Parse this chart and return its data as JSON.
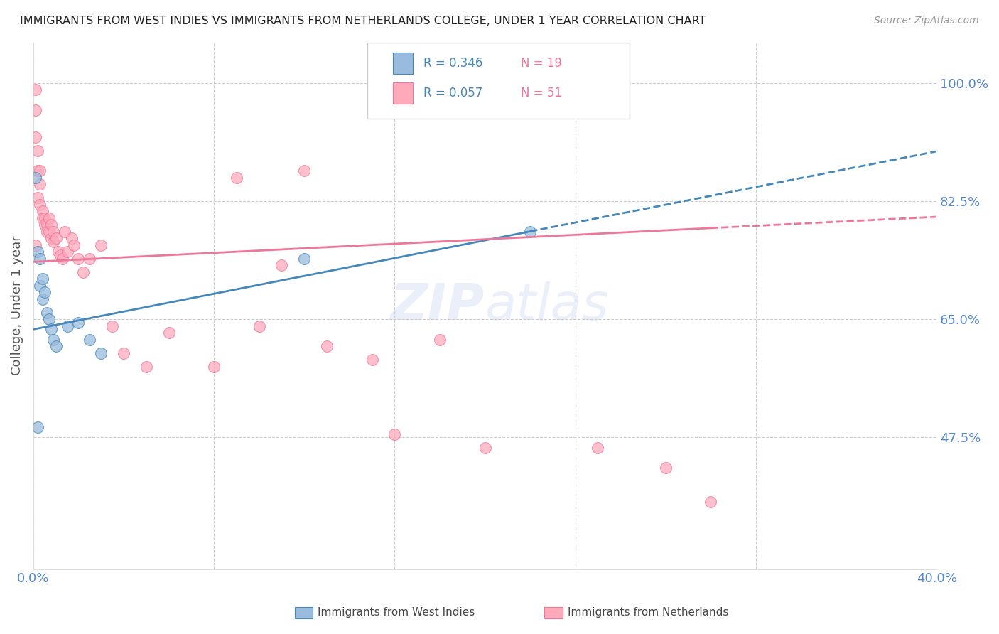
{
  "title": "IMMIGRANTS FROM WEST INDIES VS IMMIGRANTS FROM NETHERLANDS COLLEGE, UNDER 1 YEAR CORRELATION CHART",
  "source": "Source: ZipAtlas.com",
  "ylabel": "College, Under 1 year",
  "ytick_labels": [
    "47.5%",
    "65.0%",
    "82.5%",
    "100.0%"
  ],
  "ytick_values": [
    0.475,
    0.65,
    0.825,
    1.0
  ],
  "xlim": [
    0.0,
    0.4
  ],
  "ylim": [
    0.28,
    1.06
  ],
  "legend_r1": "R = 0.346",
  "legend_n1": "N = 19",
  "legend_r2": "R = 0.057",
  "legend_n2": "N = 51",
  "color_blue": "#99BBDD",
  "color_pink": "#FFAABB",
  "color_blue_dark": "#4488BB",
  "color_pink_dark": "#EE7799",
  "color_axis_labels": "#5588CC",
  "background": "#FFFFFF",
  "west_indies_x": [
    0.001,
    0.002,
    0.003,
    0.003,
    0.004,
    0.004,
    0.005,
    0.006,
    0.007,
    0.008,
    0.009,
    0.01,
    0.015,
    0.02,
    0.025,
    0.03,
    0.12,
    0.22,
    0.002
  ],
  "west_indies_y": [
    0.86,
    0.75,
    0.74,
    0.7,
    0.71,
    0.68,
    0.69,
    0.66,
    0.65,
    0.635,
    0.62,
    0.61,
    0.64,
    0.645,
    0.62,
    0.6,
    0.74,
    0.78,
    0.49
  ],
  "netherlands_x": [
    0.001,
    0.001,
    0.001,
    0.002,
    0.002,
    0.002,
    0.003,
    0.003,
    0.003,
    0.004,
    0.004,
    0.005,
    0.005,
    0.006,
    0.006,
    0.007,
    0.007,
    0.008,
    0.008,
    0.009,
    0.009,
    0.01,
    0.011,
    0.012,
    0.013,
    0.014,
    0.015,
    0.017,
    0.018,
    0.02,
    0.022,
    0.025,
    0.03,
    0.035,
    0.04,
    0.05,
    0.06,
    0.08,
    0.09,
    0.1,
    0.11,
    0.12,
    0.13,
    0.15,
    0.16,
    0.18,
    0.2,
    0.25,
    0.28,
    0.3,
    0.001
  ],
  "netherlands_y": [
    0.99,
    0.96,
    0.92,
    0.9,
    0.87,
    0.83,
    0.87,
    0.85,
    0.82,
    0.81,
    0.8,
    0.8,
    0.79,
    0.79,
    0.78,
    0.8,
    0.78,
    0.79,
    0.77,
    0.78,
    0.765,
    0.77,
    0.75,
    0.745,
    0.74,
    0.78,
    0.75,
    0.77,
    0.76,
    0.74,
    0.72,
    0.74,
    0.76,
    0.64,
    0.6,
    0.58,
    0.63,
    0.58,
    0.86,
    0.64,
    0.73,
    0.87,
    0.61,
    0.59,
    0.48,
    0.62,
    0.46,
    0.46,
    0.43,
    0.38,
    0.76
  ]
}
